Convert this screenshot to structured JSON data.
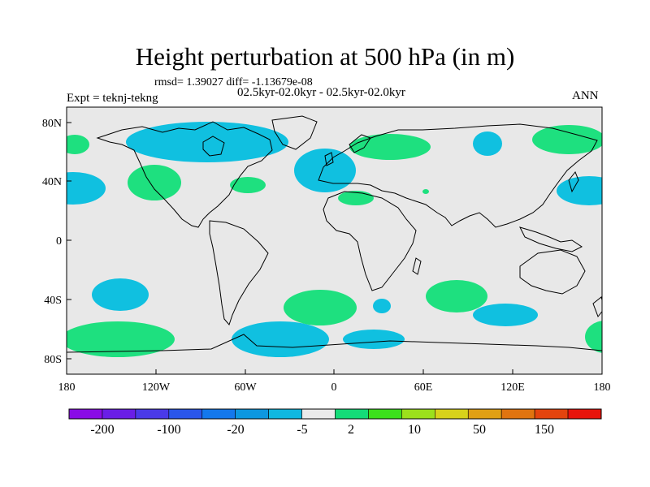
{
  "plot": {
    "title": "Height perturbation at 500 hPa (in m)",
    "stats_line": "rmsd= 1.39027 diff= -1.13679e-08",
    "expt_desc": "02.5kyr-02.0kyr - 02.5kyr-02.0kyr",
    "expt_label": "Expt = teknj-tekng",
    "season": "ANN",
    "lat_labels": [
      "80N",
      "40N",
      "0",
      "40S",
      "80S"
    ],
    "lon_labels": [
      "180",
      "120W",
      "60W",
      "0",
      "60E",
      "120E",
      "180"
    ],
    "colorbar_labels": [
      "-200",
      "-100",
      "-20",
      "-5",
      "2",
      "10",
      "50",
      "150"
    ],
    "colorbar_colors": [
      "#8a0ce6",
      "#6a1ee6",
      "#4a3ae8",
      "#2a56ea",
      "#1478ec",
      "#0d97e0",
      "#10b8e0",
      "#eaeaea",
      "#14dc78",
      "#3ce01c",
      "#9ce01c",
      "#d8d21a",
      "#e0a014",
      "#e07410",
      "#e4440e",
      "#e8140c"
    ]
  },
  "colors": {
    "ocean": "#e8e8e8",
    "negative": "#10c0e0",
    "positive": "#1ee07f"
  }
}
